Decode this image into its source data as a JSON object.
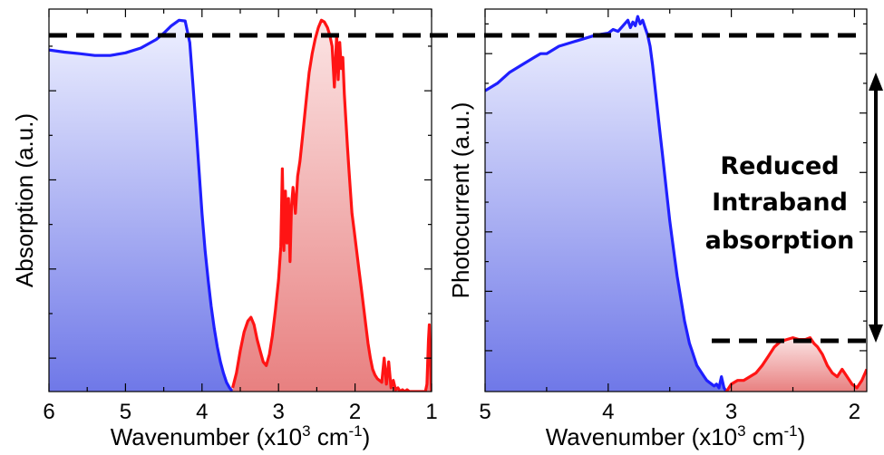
{
  "colors": {
    "blue": "#1f1fff",
    "red": "#ff1414",
    "blue_fill_top": "#eef0ff",
    "blue_fill_bottom": "#6f78e8",
    "red_fill_top": "#fbe4e4",
    "red_fill_bottom": "#e88080"
  },
  "annotation": {
    "line1": "Reduced",
    "line2": "Intraband",
    "line3": "absorption"
  },
  "chart_data": [
    {
      "type": "area",
      "title": "",
      "xlabel": "Wavenumber (x10³ cm⁻¹)",
      "xlabel_main": "Wavenumber (x10",
      "xlabel_sup1": "3",
      "xlabel_mid": " cm",
      "xlabel_sup2": "-1",
      "xlabel_end": ")",
      "ylabel": "Absorption (a.u.)",
      "xlim": [
        6,
        1
      ],
      "ylim": [
        0,
        1.03
      ],
      "xticks": [
        "6",
        "5",
        "4",
        "3",
        "2",
        "1"
      ],
      "grid": false,
      "series": [
        {
          "color": "blue",
          "x": [
            6.0,
            5.8,
            5.6,
            5.4,
            5.2,
            5.0,
            4.8,
            4.6,
            4.5,
            4.4,
            4.3,
            4.22,
            4.16,
            4.12,
            4.08,
            4.04,
            4.0,
            3.96,
            3.92,
            3.88,
            3.84,
            3.8,
            3.76,
            3.72,
            3.68,
            3.64,
            3.6
          ],
          "y": [
            0.92,
            0.914,
            0.91,
            0.905,
            0.905,
            0.912,
            0.925,
            0.948,
            0.965,
            0.985,
            1.0,
            0.998,
            0.94,
            0.83,
            0.72,
            0.6,
            0.48,
            0.38,
            0.3,
            0.23,
            0.17,
            0.12,
            0.08,
            0.05,
            0.025,
            0.01,
            0.0
          ]
        },
        {
          "color": "red",
          "x": [
            3.6,
            3.55,
            3.5,
            3.45,
            3.4,
            3.36,
            3.32,
            3.28,
            3.24,
            3.2,
            3.16,
            3.12,
            3.08,
            3.04,
            3.0,
            2.97,
            2.95,
            2.93,
            2.91,
            2.89,
            2.87,
            2.85,
            2.83,
            2.81,
            2.78,
            2.75,
            2.72,
            2.69,
            2.66,
            2.63,
            2.6,
            2.56,
            2.52,
            2.48,
            2.44,
            2.4,
            2.36,
            2.33,
            2.3,
            2.27,
            2.24,
            2.22,
            2.2,
            2.18,
            2.16,
            2.14,
            2.12,
            2.1,
            2.08,
            2.06,
            2.04,
            2.01,
            1.98,
            1.95,
            1.92,
            1.89,
            1.86,
            1.83,
            1.8,
            1.77,
            1.74,
            1.71,
            1.68,
            1.65,
            1.62,
            1.59,
            1.56,
            1.53,
            1.5,
            1.47,
            1.44,
            1.41,
            1.38,
            1.35,
            1.32,
            1.29,
            1.26,
            1.23,
            1.2,
            1.17,
            1.14,
            1.11,
            1.08,
            1.06,
            1.04,
            1.03,
            1.02,
            1.0
          ],
          "y": [
            0.01,
            0.05,
            0.11,
            0.16,
            0.19,
            0.2,
            0.18,
            0.14,
            0.11,
            0.08,
            0.07,
            0.1,
            0.15,
            0.22,
            0.3,
            0.39,
            0.6,
            0.38,
            0.54,
            0.4,
            0.52,
            0.35,
            0.5,
            0.55,
            0.48,
            0.58,
            0.62,
            0.68,
            0.74,
            0.8,
            0.86,
            0.91,
            0.95,
            0.98,
            1.0,
            0.995,
            0.98,
            0.96,
            0.93,
            0.82,
            0.96,
            0.84,
            0.94,
            0.87,
            0.9,
            0.8,
            0.73,
            0.66,
            0.6,
            0.54,
            0.48,
            0.43,
            0.38,
            0.33,
            0.28,
            0.23,
            0.18,
            0.13,
            0.09,
            0.06,
            0.045,
            0.035,
            0.03,
            0.025,
            0.09,
            0.02,
            0.08,
            0.01,
            0.03,
            0.005,
            0.01,
            0.0,
            0.005,
            0.0,
            0.005,
            0.0,
            0.0,
            0.0,
            0.0,
            0.0,
            0.0,
            0.0,
            0.0,
            0.02,
            0.14,
            0.18,
            0.1,
            0.0
          ]
        }
      ]
    },
    {
      "type": "area",
      "title": "",
      "xlabel": "Wavenumber (x10³ cm⁻¹)",
      "xlabel_main": "Wavenumber (x10",
      "xlabel_sup1": "3",
      "xlabel_mid": " cm",
      "xlabel_sup2": "-1",
      "xlabel_end": ")",
      "ylabel": "Photocurrent (a.u.)",
      "xlim": [
        5,
        1.9
      ],
      "ylim": [
        0,
        1.03
      ],
      "xticks": [
        "5",
        "4",
        "3",
        "2"
      ],
      "grid": false,
      "series": [
        {
          "color": "blue",
          "x": [
            5.0,
            4.9,
            4.8,
            4.7,
            4.6,
            4.55,
            4.5,
            4.4,
            4.3,
            4.2,
            4.1,
            4.0,
            3.96,
            3.92,
            3.88,
            3.84,
            3.82,
            3.8,
            3.78,
            3.76,
            3.74,
            3.72,
            3.7,
            3.68,
            3.66,
            3.64,
            3.62,
            3.6,
            3.58,
            3.56,
            3.54,
            3.52,
            3.5,
            3.48,
            3.46,
            3.44,
            3.42,
            3.4,
            3.38,
            3.36,
            3.34,
            3.32,
            3.3,
            3.28,
            3.26,
            3.24,
            3.22,
            3.2,
            3.18,
            3.16,
            3.14,
            3.12,
            3.1,
            3.08,
            3.06,
            3.04
          ],
          "y": [
            0.81,
            0.83,
            0.86,
            0.88,
            0.9,
            0.91,
            0.91,
            0.93,
            0.94,
            0.95,
            0.96,
            0.965,
            0.975,
            0.97,
            0.985,
            1.0,
            0.98,
            0.995,
            0.985,
            1.01,
            0.99,
            1.0,
            0.98,
            0.96,
            0.93,
            0.88,
            0.82,
            0.76,
            0.7,
            0.64,
            0.58,
            0.52,
            0.46,
            0.41,
            0.36,
            0.31,
            0.27,
            0.23,
            0.19,
            0.16,
            0.13,
            0.11,
            0.09,
            0.07,
            0.06,
            0.05,
            0.04,
            0.03,
            0.025,
            0.02,
            0.015,
            0.02,
            0.01,
            0.04,
            0.01,
            0.0
          ]
        },
        {
          "color": "red",
          "x": [
            3.04,
            3.0,
            2.95,
            2.9,
            2.85,
            2.8,
            2.75,
            2.7,
            2.65,
            2.6,
            2.55,
            2.5,
            2.45,
            2.4,
            2.36,
            2.33,
            2.3,
            2.26,
            2.22,
            2.18,
            2.14,
            2.1,
            2.06,
            2.02,
            1.98,
            1.94,
            1.9
          ],
          "y": [
            0.0,
            0.02,
            0.03,
            0.03,
            0.04,
            0.05,
            0.07,
            0.095,
            0.12,
            0.135,
            0.14,
            0.145,
            0.14,
            0.14,
            0.145,
            0.13,
            0.12,
            0.1,
            0.07,
            0.05,
            0.04,
            0.06,
            0.04,
            0.02,
            0.01,
            0.03,
            0.06
          ]
        }
      ]
    }
  ]
}
